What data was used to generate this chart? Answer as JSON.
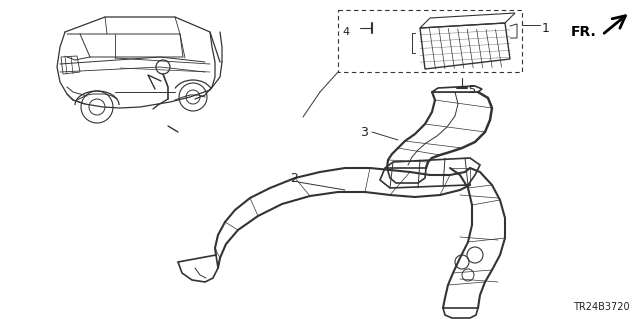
{
  "bg_color": "#ffffff",
  "diagram_code": "TR24B3720",
  "fr_label": "FR.",
  "line_color": "#333333",
  "text_color": "#222222",
  "lw_main": 1.0,
  "lw_detail": 0.6,
  "fig_w": 6.4,
  "fig_h": 3.19,
  "dpi": 100
}
